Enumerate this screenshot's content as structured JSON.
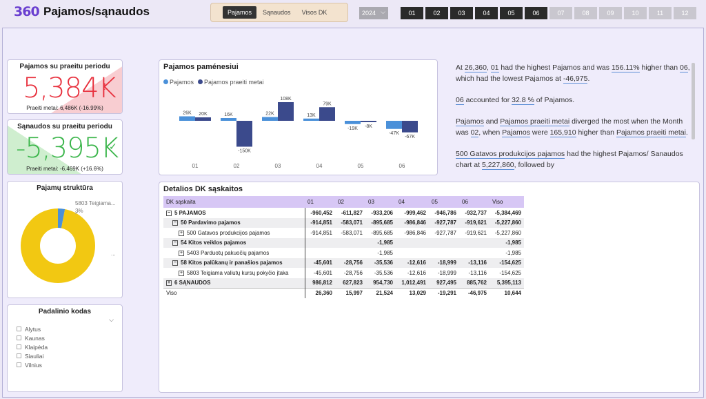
{
  "header": {
    "logo": "360",
    "title": "Pajamos/sąnaudos",
    "tabs": [
      "Pajamos",
      "Sąnaudos",
      "Visos DK"
    ],
    "active_tab": "Pajamos",
    "year": "2024",
    "months": [
      "01",
      "02",
      "03",
      "04",
      "05",
      "06",
      "07",
      "08",
      "09",
      "10",
      "11",
      "12"
    ],
    "active_months": 6
  },
  "kpi_income": {
    "title": "Pajamos su praeitu periodu",
    "value": "5,384K",
    "mark": "!",
    "sub": "Praeiti metai: 6,486K (-16.99%)",
    "color": "#e8303d"
  },
  "kpi_costs": {
    "title": "Sąnaudos su praeitu periodu",
    "value": "-5,395K",
    "mark": "✓",
    "sub": "Praeiti metai: -6,469K (+16.6%)",
    "color": "#3ab54a"
  },
  "structure": {
    "title": "Pajamų struktūra",
    "label_top": "5803 Teigiama...",
    "label_pct": "3%",
    "label_bottom": "...",
    "share_small": 0.03,
    "colors": [
      "#f2c812",
      "#4a90d9"
    ]
  },
  "slicer": {
    "title": "Padalinio kodas",
    "items": [
      "Alytus",
      "Kaunas",
      "Klaipėda",
      "Siauliai",
      "Vilnius"
    ]
  },
  "chart_data": {
    "type": "bar",
    "title": "Pajamos paménesiui",
    "categories": [
      "01",
      "02",
      "03",
      "04",
      "05",
      "06"
    ],
    "series": [
      {
        "name": "Pajamos",
        "values": [
          26,
          16,
          22,
          13,
          -19,
          -47
        ],
        "labels": [
          "26K",
          "16K",
          "22K",
          "13K",
          "-19K",
          "-47K"
        ],
        "color": "#4a90d9"
      },
      {
        "name": "Pajamos praeiti metai",
        "values": [
          20,
          -150,
          108,
          79,
          -8,
          -67
        ],
        "labels": [
          "20K",
          "-150K",
          "108K",
          "79K",
          "-8K",
          "-67K"
        ],
        "color": "#3b4a8c"
      }
    ]
  },
  "narrative": {
    "p1_a": "At ",
    "p1_v1": "26,360",
    "p1_b": ", ",
    "p1_v2": "01",
    "p1_c": " had the highest Pajamos and was ",
    "p1_v3": "156.11%",
    "p1_d": " higher than ",
    "p1_v4": "06",
    "p1_e": ", which had the lowest Pajamos at ",
    "p1_v5": "-46,975",
    "p1_f": ".",
    "p2_v1": "06",
    "p2_a": " accounted for ",
    "p2_v2": "32.8 %",
    "p2_b": " of Pajamos.",
    "p3_v1": "Pajamos",
    "p3_a": " and ",
    "p3_v2": "Pajamos praeiti metai",
    "p3_b": " diverged the most when the Month was ",
    "p3_v3": "02",
    "p3_c": ", when ",
    "p3_v4": "Pajamos",
    "p3_d": " were ",
    "p3_v5": "165,910",
    "p3_e": " higher than ",
    "p3_v6": "Pajamos praeiti metai",
    "p3_f": ".",
    "p4_v1": "500  Gatavos produkcijos pajamos",
    "p4_a": " had the highest Pajamos/ Sanaudos chart at ",
    "p4_v2": "5,227,860",
    "p4_b": ", followed by"
  },
  "table": {
    "title": "Detalios DK sąskaitos",
    "columns": [
      "DK sąskaita",
      "01",
      "02",
      "03",
      "04",
      "05",
      "06",
      "Viso"
    ],
    "rows": [
      {
        "indent": 0,
        "exp": "−",
        "bold": true,
        "shade": false,
        "cells": [
          "5 PAJAMOS",
          "-960,452",
          "-611,827",
          "-933,206",
          "-999,462",
          "-946,786",
          "-932,737",
          "-5,384,469"
        ]
      },
      {
        "indent": 1,
        "exp": "−",
        "bold": true,
        "shade": true,
        "cells": [
          "50 Pardavimo pajamos",
          "-914,851",
          "-583,071",
          "-895,685",
          "-986,846",
          "-927,787",
          "-919,621",
          "-5,227,860"
        ]
      },
      {
        "indent": 2,
        "exp": "+",
        "bold": false,
        "shade": false,
        "cells": [
          "500 Gatavos produkcijos pajamos",
          "-914,851",
          "-583,071",
          "-895,685",
          "-986,846",
          "-927,787",
          "-919,621",
          "-5,227,860"
        ]
      },
      {
        "indent": 1,
        "exp": "−",
        "bold": true,
        "shade": true,
        "cells": [
          "54 Kitos veiklos pajamos",
          "",
          "",
          "-1,985",
          "",
          "",
          "",
          "-1,985"
        ]
      },
      {
        "indent": 2,
        "exp": "+",
        "bold": false,
        "shade": false,
        "cells": [
          "5403 Parduotų pakuočių pajamos",
          "",
          "",
          "-1,985",
          "",
          "",
          "",
          "-1,985"
        ]
      },
      {
        "indent": 1,
        "exp": "−",
        "bold": true,
        "shade": true,
        "cells": [
          "58 Kitos palūkanų ir panašios pajamos",
          "-45,601",
          "-28,756",
          "-35,536",
          "-12,616",
          "-18,999",
          "-13,116",
          "-154,625"
        ]
      },
      {
        "indent": 2,
        "exp": "+",
        "bold": false,
        "shade": false,
        "cells": [
          "5803 Teigiama valiutų kursų pokyčio įtaka",
          "-45,601",
          "-28,756",
          "-35,536",
          "-12,616",
          "-18,999",
          "-13,116",
          "-154,625"
        ]
      },
      {
        "indent": 0,
        "exp": "+",
        "bold": true,
        "shade": true,
        "cells": [
          "6 SĄNAUDOS",
          "986,812",
          "627,823",
          "954,730",
          "1,012,491",
          "927,495",
          "885,762",
          "5,395,113"
        ]
      }
    ],
    "total": [
      "Viso",
      "26,360",
      "15,997",
      "21,524",
      "13,029",
      "-19,291",
      "-46,975",
      "10,644"
    ]
  }
}
